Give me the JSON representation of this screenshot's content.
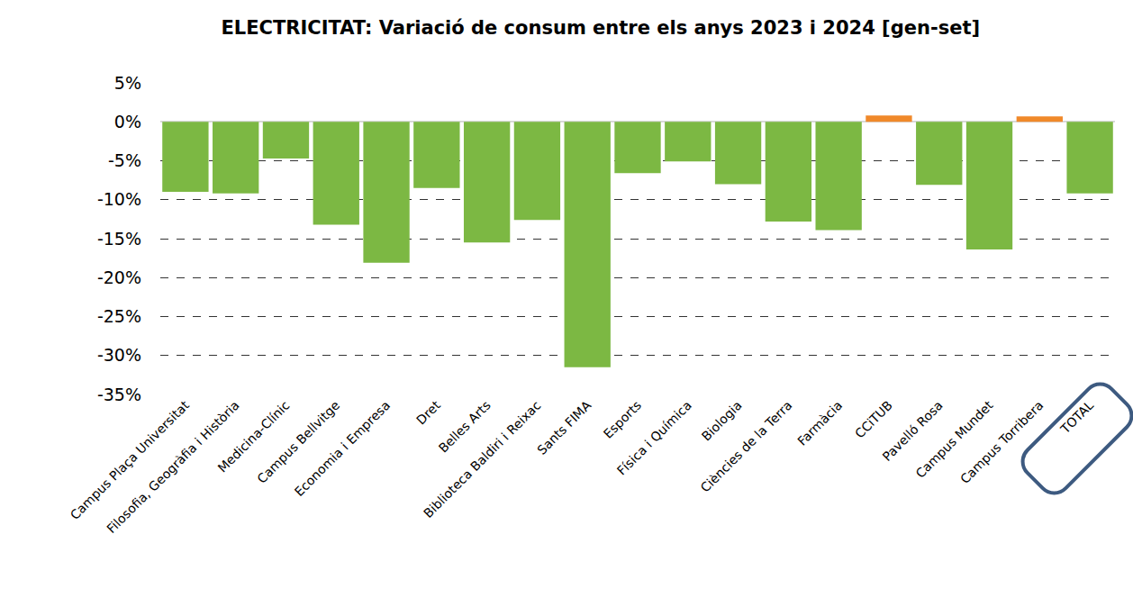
{
  "chart_data": {
    "type": "bar",
    "title": "ELECTRICITAT: Variació de consum entre els anys 2023 i 2024 [gen-set]",
    "categories": [
      "Campus Plaça Universitat",
      "Filosofia, Geogràfia i Història",
      "Medicina-Clínic",
      "Campus Bellvitge",
      "Economia i Empresa",
      "Dret",
      "Belles Arts",
      "Biblioteca Baldiri i Reixac",
      "Sants FIMA",
      "Esports",
      "Física i Química",
      "Biologia",
      "Ciències de la Terra",
      "Farmàcia",
      "CCiTUB",
      "Pavelló Rosa",
      "Campus Mundet",
      "Campus Torribera",
      "TOTAL"
    ],
    "values": [
      -9.0,
      -9.2,
      -4.7,
      -13.2,
      -18.1,
      -8.5,
      -15.5,
      -12.6,
      -31.5,
      -6.6,
      -5.1,
      -8.0,
      -12.8,
      -13.9,
      0.8,
      -8.1,
      -16.4,
      0.7,
      -9.2
    ],
    "colors": [
      "#7cb843",
      "#7cb843",
      "#7cb843",
      "#7cb843",
      "#7cb843",
      "#7cb843",
      "#7cb843",
      "#7cb843",
      "#7cb843",
      "#7cb843",
      "#7cb843",
      "#7cb843",
      "#7cb843",
      "#7cb843",
      "#f0892a",
      "#7cb843",
      "#7cb843",
      "#f0892a",
      "#7cb843"
    ],
    "ylim": [
      -35,
      5
    ],
    "yticks": [
      {
        "value": 5,
        "label": "5%"
      },
      {
        "value": 0,
        "label": "0%"
      },
      {
        "value": -5,
        "label": "-5%"
      },
      {
        "value": -10,
        "label": "-10%"
      },
      {
        "value": -15,
        "label": "-15%"
      },
      {
        "value": -20,
        "label": "-20%"
      },
      {
        "value": -25,
        "label": "-25%"
      },
      {
        "value": -30,
        "label": "-30%"
      },
      {
        "value": -35,
        "label": "-35%"
      }
    ],
    "grid": true
  }
}
